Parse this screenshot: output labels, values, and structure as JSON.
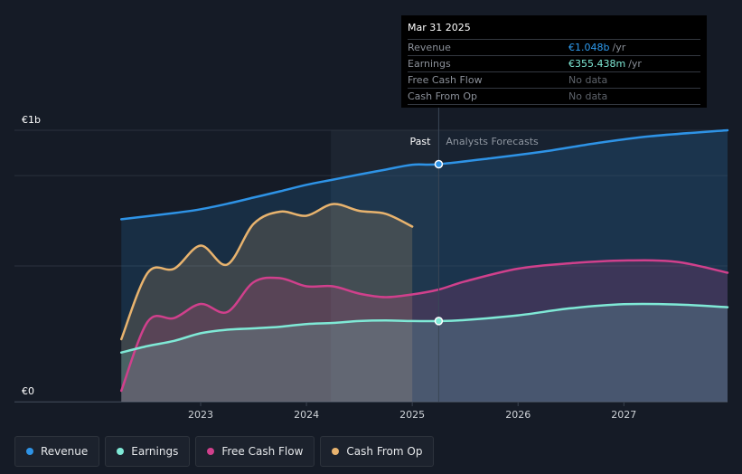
{
  "chart_data": {
    "type": "area",
    "currency_ticks": {
      "top": "€1b",
      "bottom": "€0"
    },
    "ylim": [
      0,
      1
    ],
    "x_ticks": [
      "2023",
      "2024",
      "2025",
      "2026",
      "2027"
    ],
    "x_tick_values": [
      2023,
      2024,
      2025,
      2026,
      2027
    ],
    "xlim": [
      2021.24,
      2027.98
    ],
    "divider_x": 2025.25,
    "shade_start_x": 2024.23,
    "past_label": "Past",
    "forecast_label": "Analysts Forecasts",
    "series": [
      {
        "name": "Revenue",
        "color": "#2e93e6",
        "x": [
          2022.25,
          2022.75,
          2023.0,
          2023.25,
          2023.5,
          2023.75,
          2024.0,
          2024.25,
          2024.5,
          2024.75,
          2025.0,
          2025.25,
          2025.75,
          2026.25,
          2026.75,
          2027.25,
          2027.98
        ],
        "y": [
          0.672,
          0.695,
          0.709,
          0.729,
          0.752,
          0.775,
          0.799,
          0.818,
          0.837,
          0.855,
          0.873,
          0.875,
          0.897,
          0.922,
          0.953,
          0.978,
          1.0
        ]
      },
      {
        "name": "Earnings",
        "color": "#7fe9d6",
        "x": [
          2022.25,
          2022.5,
          2022.75,
          2023.0,
          2023.25,
          2023.5,
          2023.75,
          2024.0,
          2024.25,
          2024.5,
          2024.75,
          2025.0,
          2025.25,
          2025.5,
          2026.0,
          2026.5,
          2027.0,
          2027.5,
          2027.98
        ],
        "y": [
          0.181,
          0.205,
          0.224,
          0.252,
          0.265,
          0.27,
          0.276,
          0.286,
          0.29,
          0.297,
          0.299,
          0.297,
          0.297,
          0.301,
          0.318,
          0.344,
          0.359,
          0.358,
          0.348
        ]
      },
      {
        "name": "Free Cash Flow",
        "color": "#d0408c",
        "x": [
          2022.25,
          2022.5,
          2022.75,
          2023.0,
          2023.25,
          2023.5,
          2023.75,
          2024.0,
          2024.25,
          2024.5,
          2024.75,
          2025.0,
          2025.25,
          2025.5,
          2026.0,
          2026.5,
          2027.0,
          2027.5,
          2027.98
        ],
        "y": [
          0.04,
          0.295,
          0.308,
          0.36,
          0.33,
          0.44,
          0.455,
          0.425,
          0.425,
          0.398,
          0.385,
          0.395,
          0.413,
          0.443,
          0.49,
          0.51,
          0.52,
          0.515,
          0.475
        ]
      },
      {
        "name": "Cash From Op",
        "color": "#e8b36e",
        "x": [
          2022.25,
          2022.5,
          2022.75,
          2023.0,
          2023.25,
          2023.5,
          2023.75,
          2024.0,
          2024.25,
          2024.5,
          2024.75,
          2025.0
        ],
        "y": [
          0.23,
          0.475,
          0.49,
          0.575,
          0.505,
          0.655,
          0.7,
          0.685,
          0.728,
          0.703,
          0.692,
          0.645
        ]
      }
    ]
  },
  "tooltip": {
    "date": "Mar 31 2025",
    "rows": [
      {
        "label": "Revenue",
        "value": "€1.048b",
        "unit": "/yr"
      },
      {
        "label": "Earnings",
        "value": "€355.438m",
        "unit": "/yr"
      },
      {
        "label": "Free Cash Flow",
        "value": "No data",
        "unit": ""
      },
      {
        "label": "Cash From Op",
        "value": "No data",
        "unit": ""
      }
    ]
  },
  "legend": [
    {
      "label": "Revenue",
      "color": "#2e93e6"
    },
    {
      "label": "Earnings",
      "color": "#7fe9d6"
    },
    {
      "label": "Free Cash Flow",
      "color": "#d0408c"
    },
    {
      "label": "Cash From Op",
      "color": "#e8b36e"
    }
  ]
}
